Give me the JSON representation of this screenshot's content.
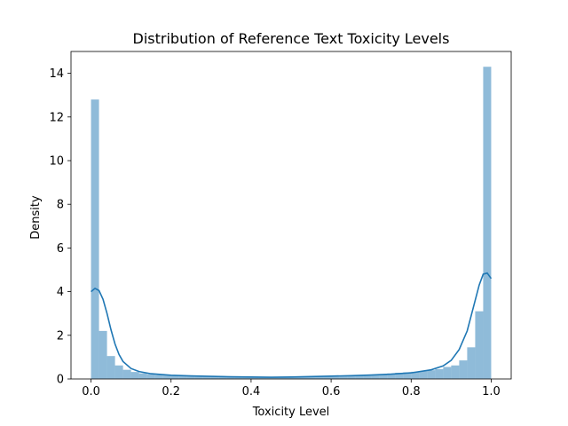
{
  "colors": {
    "bar": "#1f77b4",
    "kde": "#1f77b4",
    "axis": "#000000",
    "background": "#ffffff"
  },
  "chart_data": {
    "type": "bar",
    "title": "Distribution of Reference Text Toxicity Levels",
    "xlabel": "Toxicity Level",
    "ylabel": "Density",
    "xlim": [
      -0.05,
      1.05
    ],
    "ylim": [
      0,
      15
    ],
    "xticks": [
      "0.0",
      "0.2",
      "0.4",
      "0.6",
      "0.8",
      "1.0"
    ],
    "xtick_values": [
      0.0,
      0.2,
      0.4,
      0.6,
      0.8,
      1.0
    ],
    "yticks": [
      "0",
      "2",
      "4",
      "6",
      "8",
      "10",
      "12",
      "14"
    ],
    "ytick_values": [
      0,
      2,
      4,
      6,
      8,
      10,
      12,
      14
    ],
    "grid": false,
    "legend": "none",
    "bin_edges": [
      0.0,
      0.02,
      0.04,
      0.06,
      0.08,
      0.1,
      0.12,
      0.14,
      0.16,
      0.18,
      0.2,
      0.22,
      0.24,
      0.26,
      0.28,
      0.3,
      0.32,
      0.34,
      0.36,
      0.38,
      0.4,
      0.42,
      0.44,
      0.46,
      0.48,
      0.5,
      0.52,
      0.54,
      0.56,
      0.58,
      0.6,
      0.62,
      0.64,
      0.66,
      0.68,
      0.7,
      0.72,
      0.74,
      0.76,
      0.78,
      0.8,
      0.82,
      0.84,
      0.86,
      0.88,
      0.9,
      0.92,
      0.94,
      0.96,
      0.98,
      1.0
    ],
    "values": [
      12.8,
      2.2,
      1.05,
      0.62,
      0.42,
      0.32,
      0.26,
      0.22,
      0.19,
      0.17,
      0.15,
      0.14,
      0.13,
      0.12,
      0.11,
      0.1,
      0.1,
      0.09,
      0.09,
      0.09,
      0.09,
      0.09,
      0.09,
      0.09,
      0.09,
      0.1,
      0.1,
      0.1,
      0.11,
      0.12,
      0.13,
      0.14,
      0.15,
      0.16,
      0.18,
      0.2,
      0.22,
      0.25,
      0.28,
      0.3,
      0.33,
      0.36,
      0.4,
      0.45,
      0.55,
      0.62,
      0.85,
      1.45,
      3.1,
      14.3
    ],
    "kde": {
      "x": [
        0.0,
        0.01,
        0.02,
        0.03,
        0.04,
        0.05,
        0.06,
        0.07,
        0.08,
        0.1,
        0.12,
        0.15,
        0.2,
        0.25,
        0.3,
        0.35,
        0.4,
        0.45,
        0.5,
        0.55,
        0.6,
        0.65,
        0.7,
        0.75,
        0.8,
        0.85,
        0.88,
        0.9,
        0.92,
        0.94,
        0.95,
        0.96,
        0.97,
        0.98,
        0.99,
        1.0
      ],
      "y": [
        4.0,
        4.15,
        4.05,
        3.65,
        3.0,
        2.25,
        1.6,
        1.12,
        0.8,
        0.48,
        0.34,
        0.24,
        0.17,
        0.14,
        0.12,
        0.1,
        0.09,
        0.08,
        0.09,
        0.11,
        0.13,
        0.15,
        0.18,
        0.22,
        0.28,
        0.42,
        0.6,
        0.85,
        1.35,
        2.2,
        2.9,
        3.6,
        4.3,
        4.8,
        4.85,
        4.6
      ]
    }
  }
}
